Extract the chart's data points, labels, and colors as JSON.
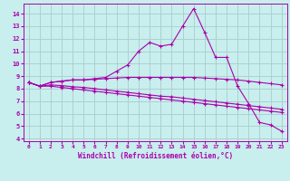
{
  "xlabel": "Windchill (Refroidissement éolien,°C)",
  "bg_color": "#c8eeee",
  "line_color": "#aa00aa",
  "grid_color": "#aacccc",
  "xlim": [
    -0.5,
    23.5
  ],
  "ylim": [
    3.8,
    14.8
  ],
  "yticks": [
    4,
    5,
    6,
    7,
    8,
    9,
    10,
    11,
    12,
    13,
    14
  ],
  "xticks": [
    0,
    1,
    2,
    3,
    4,
    5,
    6,
    7,
    8,
    9,
    10,
    11,
    12,
    13,
    14,
    15,
    16,
    17,
    18,
    19,
    20,
    21,
    22,
    23
  ],
  "series": [
    [
      8.5,
      8.2,
      8.5,
      8.6,
      8.7,
      8.7,
      8.8,
      8.9,
      9.4,
      9.9,
      11.0,
      11.7,
      11.4,
      11.55,
      13.0,
      14.4,
      12.5,
      10.5,
      10.5,
      8.2,
      6.8,
      5.3,
      5.1,
      4.6
    ],
    [
      8.5,
      8.2,
      8.5,
      8.6,
      8.7,
      8.7,
      8.75,
      8.8,
      8.85,
      8.9,
      8.9,
      8.9,
      8.9,
      8.9,
      8.9,
      8.9,
      8.85,
      8.8,
      8.75,
      8.7,
      8.6,
      8.5,
      8.4,
      8.3
    ],
    [
      8.5,
      8.2,
      8.3,
      8.25,
      8.15,
      8.1,
      8.0,
      7.9,
      7.8,
      7.7,
      7.6,
      7.5,
      7.4,
      7.35,
      7.25,
      7.15,
      7.05,
      6.95,
      6.85,
      6.75,
      6.65,
      6.55,
      6.45,
      6.35
    ],
    [
      8.5,
      8.2,
      8.2,
      8.1,
      8.0,
      7.9,
      7.8,
      7.7,
      7.6,
      7.5,
      7.4,
      7.3,
      7.2,
      7.1,
      7.0,
      6.9,
      6.8,
      6.7,
      6.6,
      6.5,
      6.4,
      6.3,
      6.2,
      6.1
    ]
  ]
}
